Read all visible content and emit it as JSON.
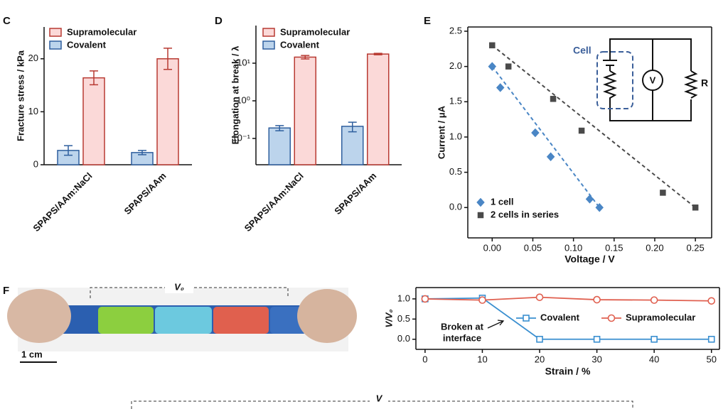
{
  "photo": {
    "label": "F",
    "top_label": "V₀",
    "scale_label": "1 cm",
    "bottom_label": "V"
  },
  "chart_data": [
    {
      "type": "bar",
      "label": "C",
      "ylabel": "Fracture stress / kPa",
      "categories": [
        "SPAPS/AAm:NaCl",
        "SPAPS/AAm"
      ],
      "series": [
        {
          "name": "Supramolecular",
          "color": "#b83a32",
          "fill": "#fbd9d8",
          "values": [
            16.4,
            20.0
          ],
          "errors": [
            1.3,
            2.0
          ]
        },
        {
          "name": "Covalent",
          "color": "#2f5f9e",
          "fill": "#bcd4ec",
          "values": [
            2.7,
            2.3
          ],
          "errors": [
            0.9,
            0.4
          ]
        }
      ],
      "ylim": [
        0,
        26
      ],
      "yticks": [
        0,
        10,
        20
      ]
    },
    {
      "type": "bar",
      "label": "D",
      "ylabel": "Elongation at break / λ",
      "log_scale": true,
      "categories": [
        "SPAPS/AAm:NaCl",
        "SPAPS/AAm"
      ],
      "series": [
        {
          "name": "Supramolecular",
          "color": "#b83a32",
          "fill": "#fbd9d8",
          "values": [
            14.5,
            17.5
          ],
          "errors": [
            1.5,
            0.8
          ]
        },
        {
          "name": "Covalent",
          "color": "#2f5f9e",
          "fill": "#bcd4ec",
          "values": [
            0.19,
            0.21
          ],
          "errors": [
            0.03,
            0.06
          ]
        }
      ],
      "ylim": [
        0.02,
        100
      ],
      "yticks": [
        {
          "value": 0.1,
          "label": "10⁻¹"
        },
        {
          "value": 1,
          "label": "10⁰"
        },
        {
          "value": 10,
          "label": "10¹"
        }
      ]
    },
    {
      "type": "scatter",
      "label": "E",
      "xlabel": "Voltage / V",
      "ylabel": "Current / μA",
      "inset_labels": [
        "Cell",
        "V",
        "R"
      ],
      "series": [
        {
          "name": "1 cell",
          "color": "#4a86c5",
          "marker": "diamond",
          "x": [
            0.0,
            0.01,
            0.053,
            0.072,
            0.12,
            0.132
          ],
          "values": [
            2.0,
            1.7,
            1.06,
            0.72,
            0.12,
            0.0
          ]
        },
        {
          "name": "2 cells in series",
          "color": "#4a4a4a",
          "marker": "square",
          "x": [
            0.0,
            0.02,
            0.075,
            0.11,
            0.21,
            0.25
          ],
          "values": [
            2.3,
            2.0,
            1.54,
            1.09,
            0.21,
            0.0
          ]
        }
      ],
      "xlim": [
        -0.03,
        0.27
      ],
      "xticks": [
        {
          "value": 0,
          "label": "0.00"
        },
        0.05,
        {
          "value": 0.1,
          "label": "0.10"
        },
        0.15,
        {
          "value": 0.2,
          "label": "0.20"
        },
        0.25
      ],
      "ylim": [
        -0.43,
        2.56
      ],
      "yticks": [
        {
          "value": 0,
          "label": "0.0"
        },
        0.5,
        {
          "value": 1,
          "label": "1.0"
        },
        1.5,
        {
          "value": 2,
          "label": "2.0"
        },
        2.5
      ]
    },
    {
      "type": "line",
      "xlabel": "Strain / %",
      "ylabel": "V/V₀",
      "annotation": [
        "Broken at",
        "interface"
      ],
      "x": [
        0,
        10,
        20,
        30,
        40,
        50
      ],
      "series": [
        {
          "name": "Covalent",
          "color": "#3a8fd0",
          "marker": "square",
          "values": [
            1.0,
            1.02,
            0.0,
            0.0,
            0.0,
            0.0
          ]
        },
        {
          "name": "Supramolecular",
          "color": "#e06050",
          "marker": "circle",
          "values": [
            1.0,
            0.97,
            1.04,
            0.98,
            0.97,
            0.95
          ]
        }
      ],
      "xlim": [
        -1.6,
        51.4
      ],
      "xticks": [
        0,
        10,
        20,
        30,
        40,
        50
      ],
      "ylim": [
        -0.25,
        1.28
      ],
      "yticks": [
        {
          "value": 0,
          "label": "0.0"
        },
        0.5,
        {
          "value": 1,
          "label": "1.0"
        }
      ]
    }
  ]
}
